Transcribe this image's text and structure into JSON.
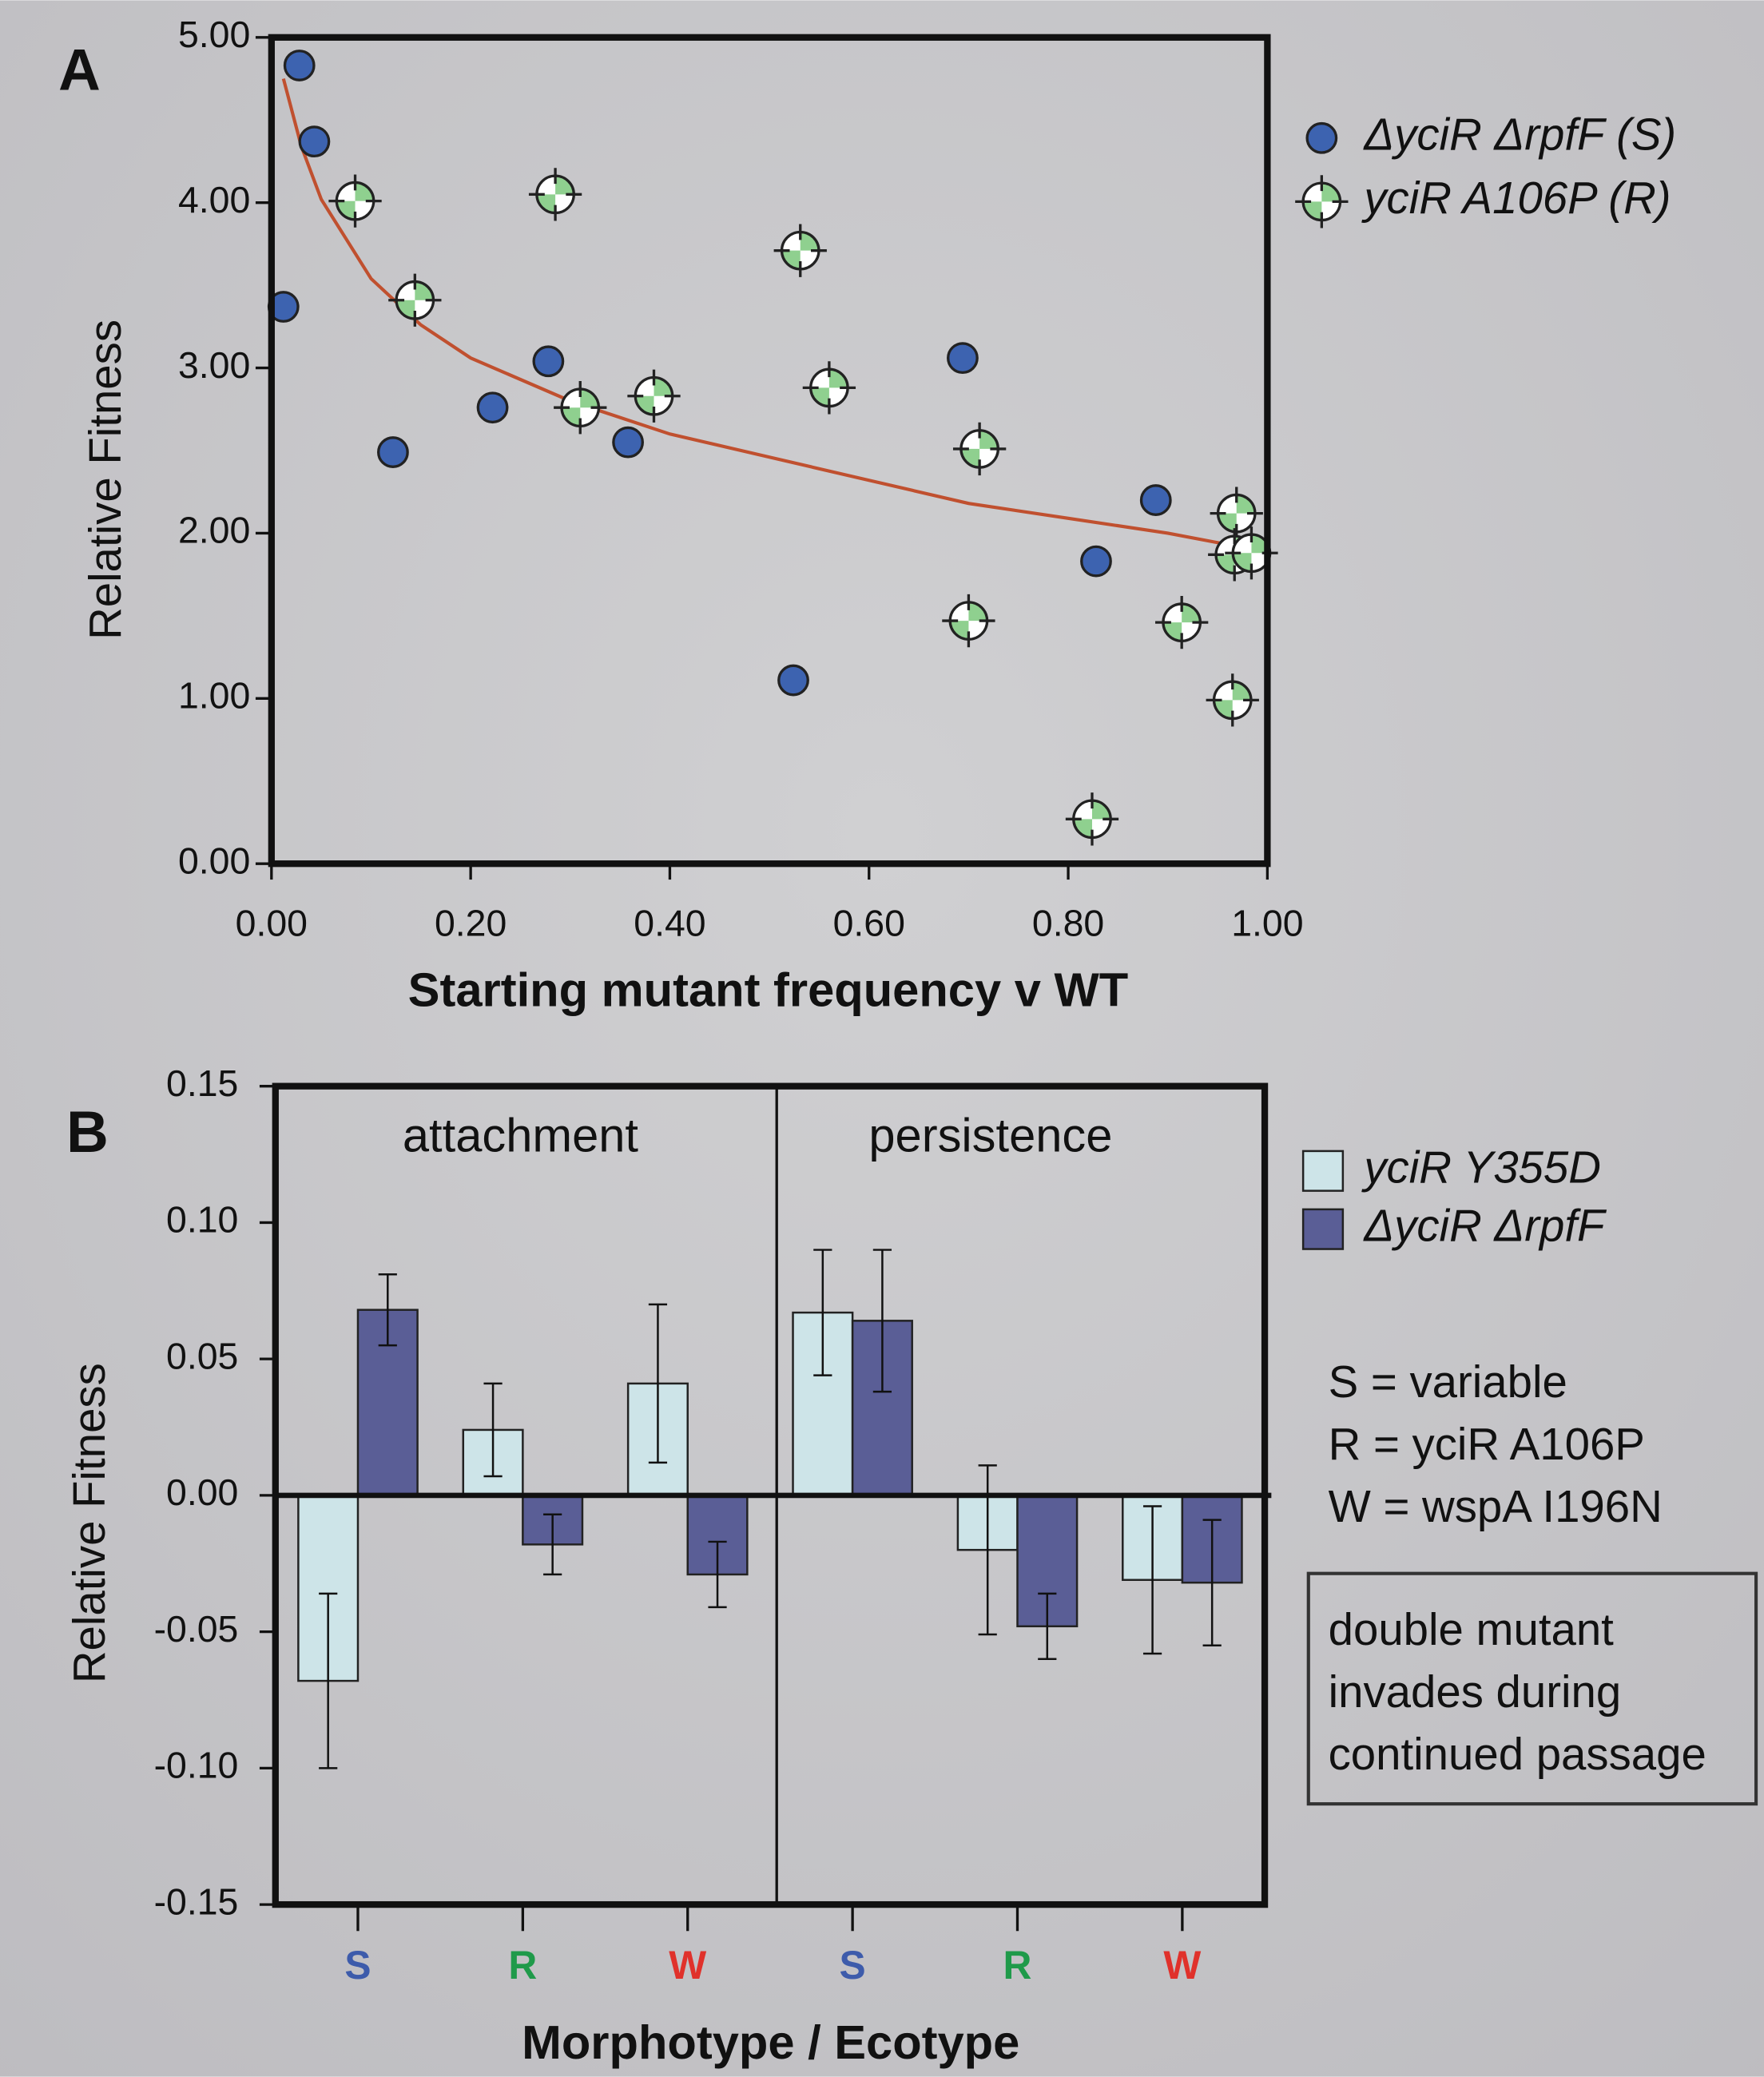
{
  "chart_data": [
    {
      "type": "scatter",
      "panel_label": "A",
      "x_label": "Starting mutant frequency v WT",
      "y_label": "Relative Fitness",
      "xlim": [
        0,
        1
      ],
      "ylim": [
        0,
        5
      ],
      "xticks": [
        {
          "value": 0,
          "label": "0.00"
        },
        {
          "value": 0.2,
          "label": "0.20"
        },
        {
          "value": 0.4,
          "label": "0.40"
        },
        {
          "value": 0.6,
          "label": "0.60"
        },
        {
          "value": 0.8,
          "label": "0.80"
        },
        {
          "value": 1,
          "label": "1.00"
        }
      ],
      "yticks": [
        {
          "value": 0,
          "label": "0.00"
        },
        {
          "value": 1,
          "label": "1.00"
        },
        {
          "value": 2,
          "label": "2.00"
        },
        {
          "value": 3,
          "label": "3.00"
        },
        {
          "value": 4,
          "label": "4.00"
        },
        {
          "value": 5,
          "label": "5.00"
        }
      ],
      "series": [
        {
          "name": "ΔyciR ΔrpfF (S)",
          "color": "#3d63b0",
          "x": [
            0.028,
            0.043,
            0.012,
            0.122,
            0.222,
            0.278,
            0.358,
            0.524,
            0.694,
            0.888,
            0.828
          ],
          "values": [
            4.83,
            4.37,
            3.37,
            2.49,
            2.76,
            3.04,
            2.55,
            1.11,
            3.06,
            2.2,
            1.83
          ]
        },
        {
          "name": "yciR A106P (R)",
          "color": "#8fd08f",
          "x": [
            0.084,
            0.144,
            0.285,
            0.31,
            0.384,
            0.531,
            0.56,
            0.711,
            0.7,
            0.824,
            0.914,
            0.969,
            0.967,
            0.984,
            0.965
          ],
          "values": [
            4.01,
            3.41,
            4.05,
            2.76,
            2.83,
            3.71,
            2.88,
            2.51,
            1.47,
            0.27,
            1.46,
            2.12,
            1.87,
            1.88,
            0.99
          ]
        }
      ],
      "fit": {
        "color": "#c0502f",
        "x": [
          0.012,
          0.03,
          0.05,
          0.1,
          0.15,
          0.2,
          0.3,
          0.4,
          0.5,
          0.6,
          0.7,
          0.8,
          0.9,
          0.97
        ],
        "values": [
          4.75,
          4.34,
          4.02,
          3.54,
          3.26,
          3.06,
          2.8,
          2.6,
          2.46,
          2.32,
          2.18,
          2.09,
          2.0,
          1.92
        ]
      }
    },
    {
      "type": "bar",
      "panel_label": "B",
      "x_label": "Morphotype / Ecotype",
      "y_label": "Relative Fitness",
      "panels": [
        "attachment",
        "persistence"
      ],
      "categories": [
        "S",
        "R",
        "W",
        "S",
        "R",
        "W"
      ],
      "category_colors": [
        "#3d5bab",
        "#1f9a4a",
        "#e0312b",
        "#3d5bab",
        "#1f9a4a",
        "#e0312b"
      ],
      "ylim": [
        -0.15,
        0.15
      ],
      "yticks": [
        -0.15,
        {
          "value": -0.1,
          "label": "-0.10"
        },
        -0.05,
        {
          "value": 0,
          "label": "0.00"
        },
        0.05,
        {
          "value": 0.1,
          "label": "0.10"
        },
        0.15
      ],
      "series": [
        {
          "name": "yciR Y355D",
          "color": "#cde4e8",
          "values": [
            -0.068,
            0.024,
            0.041,
            0.067,
            -0.02,
            -0.031
          ],
          "errors": [
            0.032,
            0.017,
            0.029,
            0.023,
            0.031,
            0.027
          ]
        },
        {
          "name": "ΔyciR ΔrpfF",
          "color": "#5a5e96",
          "values": [
            0.068,
            -0.018,
            -0.029,
            0.064,
            -0.048,
            -0.032
          ],
          "errors": [
            0.013,
            0.011,
            0.012,
            0.026,
            0.012,
            0.023
          ]
        }
      ],
      "annotations": [
        "S = variable",
        "R = yciR A106P",
        "W = wspA I196N"
      ],
      "box_text": [
        "double mutant",
        "invades during",
        "continued passage"
      ]
    }
  ]
}
